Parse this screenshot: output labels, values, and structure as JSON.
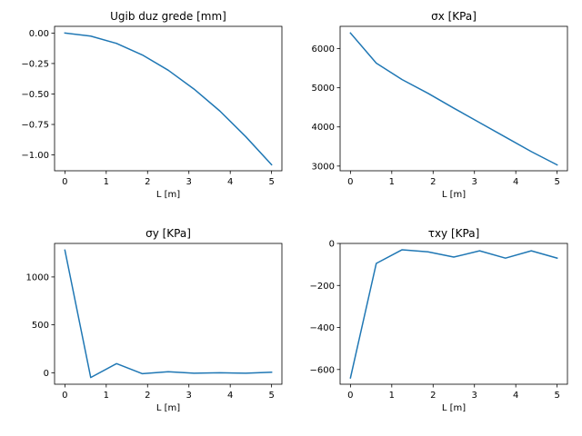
{
  "colors": {
    "series": "#1f77b4",
    "axis": "#000000",
    "background": "#ffffff"
  },
  "chart_data": [
    {
      "type": "line",
      "title": "Ugib duz grede [mm]",
      "xlabel": "L [m]",
      "ylabel": "",
      "xlim": [
        -0.25,
        5.25
      ],
      "ylim": [
        -1.13,
        0.055
      ],
      "xticks": [
        0,
        1,
        2,
        3,
        4,
        5
      ],
      "xtick_labels": [
        "0",
        "1",
        "2",
        "3",
        "4",
        "5"
      ],
      "yticks": [
        0.0,
        -0.25,
        -0.5,
        -0.75,
        -1.0
      ],
      "ytick_labels": [
        "0.00",
        "−0.25",
        "−0.50",
        "−0.75",
        "−1.00"
      ],
      "grid": false,
      "x": [
        0,
        0.625,
        1.25,
        1.875,
        2.5,
        3.125,
        3.75,
        4.375,
        5
      ],
      "series": [
        {
          "values": [
            0.0,
            -0.025,
            -0.085,
            -0.18,
            -0.305,
            -0.46,
            -0.64,
            -0.85,
            -1.08
          ]
        }
      ]
    },
    {
      "type": "line",
      "title": "σx [KPa]",
      "xlabel": "L [m]",
      "ylabel": "",
      "xlim": [
        -0.25,
        5.25
      ],
      "ylim": [
        2880,
        6570
      ],
      "xticks": [
        0,
        1,
        2,
        3,
        4,
        5
      ],
      "xtick_labels": [
        "0",
        "1",
        "2",
        "3",
        "4",
        "5"
      ],
      "yticks": [
        3000,
        4000,
        5000,
        6000
      ],
      "ytick_labels": [
        "3000",
        "4000",
        "5000",
        "6000"
      ],
      "grid": false,
      "x": [
        0,
        0.625,
        1.25,
        1.875,
        2.5,
        3.125,
        3.75,
        4.375,
        5
      ],
      "series": [
        {
          "values": [
            6400,
            5630,
            5210,
            4860,
            4480,
            4110,
            3740,
            3370,
            3030
          ]
        }
      ]
    },
    {
      "type": "line",
      "title": "σy [KPa]",
      "xlabel": "L [m]",
      "ylabel": "",
      "xlim": [
        -0.25,
        5.25
      ],
      "ylim": [
        -120,
        1350
      ],
      "xticks": [
        0,
        1,
        2,
        3,
        4,
        5
      ],
      "xtick_labels": [
        "0",
        "1",
        "2",
        "3",
        "4",
        "5"
      ],
      "yticks": [
        0,
        500,
        1000
      ],
      "ytick_labels": [
        "0",
        "500",
        "1000"
      ],
      "grid": false,
      "x": [
        0,
        0.625,
        1.25,
        1.875,
        2.5,
        3.125,
        3.75,
        4.375,
        5
      ],
      "series": [
        {
          "values": [
            1280,
            -50,
            95,
            -10,
            10,
            -5,
            0,
            -5,
            5
          ]
        }
      ]
    },
    {
      "type": "line",
      "title": "τxy [KPa]",
      "xlabel": "L [m]",
      "ylabel": "",
      "xlim": [
        -0.25,
        5.25
      ],
      "ylim": [
        -670,
        0
      ],
      "xticks": [
        0,
        1,
        2,
        3,
        4,
        5
      ],
      "xtick_labels": [
        "0",
        "1",
        "2",
        "3",
        "4",
        "5"
      ],
      "yticks": [
        0,
        -200,
        -400,
        -600
      ],
      "ytick_labels": [
        "0",
        "−200",
        "−400",
        "−600"
      ],
      "grid": false,
      "x": [
        0,
        0.625,
        1.25,
        1.875,
        2.5,
        3.125,
        3.75,
        4.375,
        5
      ],
      "series": [
        {
          "values": [
            -640,
            -95,
            -30,
            -40,
            -65,
            -35,
            -70,
            -35,
            -70
          ]
        }
      ]
    }
  ]
}
